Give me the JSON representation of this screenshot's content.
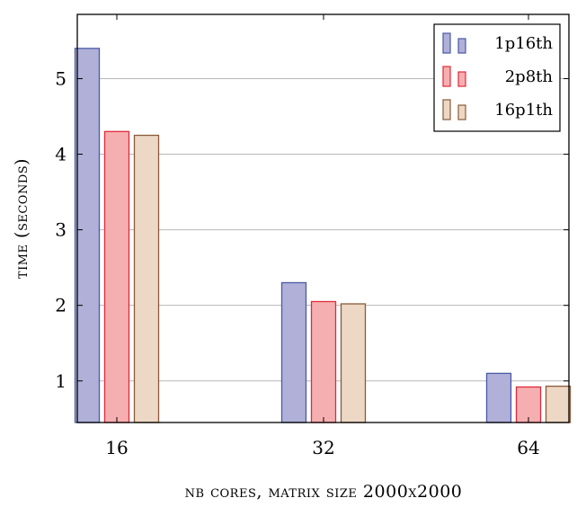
{
  "chart_data": {
    "type": "bar",
    "categories": [
      "16",
      "32",
      "64"
    ],
    "series": [
      {
        "name": "1p16th",
        "values": [
          5.4,
          2.3,
          1.1
        ],
        "fill": "#b0b0d8",
        "stroke": "#4a5aa8"
      },
      {
        "name": "2p8th",
        "values": [
          4.3,
          2.05,
          0.92
        ],
        "fill": "#f6afb0",
        "stroke": "#e02a38"
      },
      {
        "name": "16p1th",
        "values": [
          4.25,
          2.02,
          0.93
        ],
        "fill": "#ecd8c4",
        "stroke": "#8a5a3a"
      }
    ],
    "xlabel": "nb cores, matrix size 2000x2000",
    "ylabel": "time (seconds)",
    "ylim": [
      0.45,
      5.85
    ],
    "yticks": [
      1,
      2,
      3,
      4,
      5
    ],
    "grid": "y",
    "legend_position": "top-right"
  }
}
